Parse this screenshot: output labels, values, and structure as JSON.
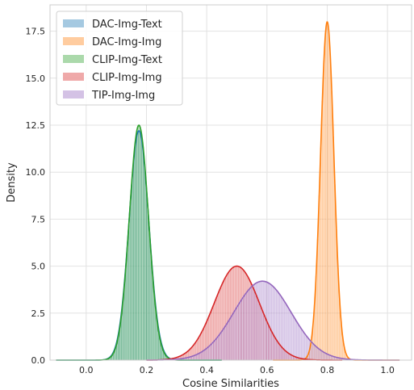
{
  "chart_data": {
    "type": "histogram-kde",
    "xlabel": "Cosine Similarities",
    "ylabel": "Density",
    "xlim": [
      -0.12,
      1.08
    ],
    "ylim": [
      0,
      18.9
    ],
    "x_ticks": [
      0.0,
      0.2,
      0.4,
      0.6,
      0.8,
      1.0
    ],
    "x_tick_labels": [
      "0.0",
      "0.2",
      "0.4",
      "0.6",
      "0.8",
      "1.0"
    ],
    "y_ticks": [
      0.0,
      2.5,
      5.0,
      7.5,
      10.0,
      12.5,
      15.0,
      17.5
    ],
    "y_tick_labels": [
      "0.0",
      "2.5",
      "5.0",
      "7.5",
      "10.0",
      "12.5",
      "15.0",
      "17.5"
    ],
    "grid": true,
    "legend_position": "top-left",
    "series": [
      {
        "name": "DAC-Img-Text",
        "color": "#1f77b4",
        "peak_x": 0.175,
        "peak_density": 12.2,
        "spread": 0.0327,
        "range": [
          -0.1,
          0.45
        ]
      },
      {
        "name": "DAC-Img-Img",
        "color": "#ff7f0e",
        "peak_x": 0.8,
        "peak_density": 18.0,
        "spread": 0.0222,
        "range": [
          0.62,
          1.04
        ]
      },
      {
        "name": "CLIP-Img-Text",
        "color": "#2ca02c",
        "peak_x": 0.175,
        "peak_density": 12.5,
        "spread": 0.0319,
        "range": [
          -0.1,
          0.45
        ]
      },
      {
        "name": "CLIP-Img-Img",
        "color": "#d62728",
        "peak_x": 0.5,
        "peak_density": 5.0,
        "spread": 0.075,
        "range": [
          0.2,
          0.85
        ]
      },
      {
        "name": "TIP-Img-Img",
        "color": "#9467bd",
        "peak_x": 0.585,
        "peak_density": 4.2,
        "spread": 0.095,
        "range": [
          0.2,
          1.04
        ]
      }
    ]
  }
}
